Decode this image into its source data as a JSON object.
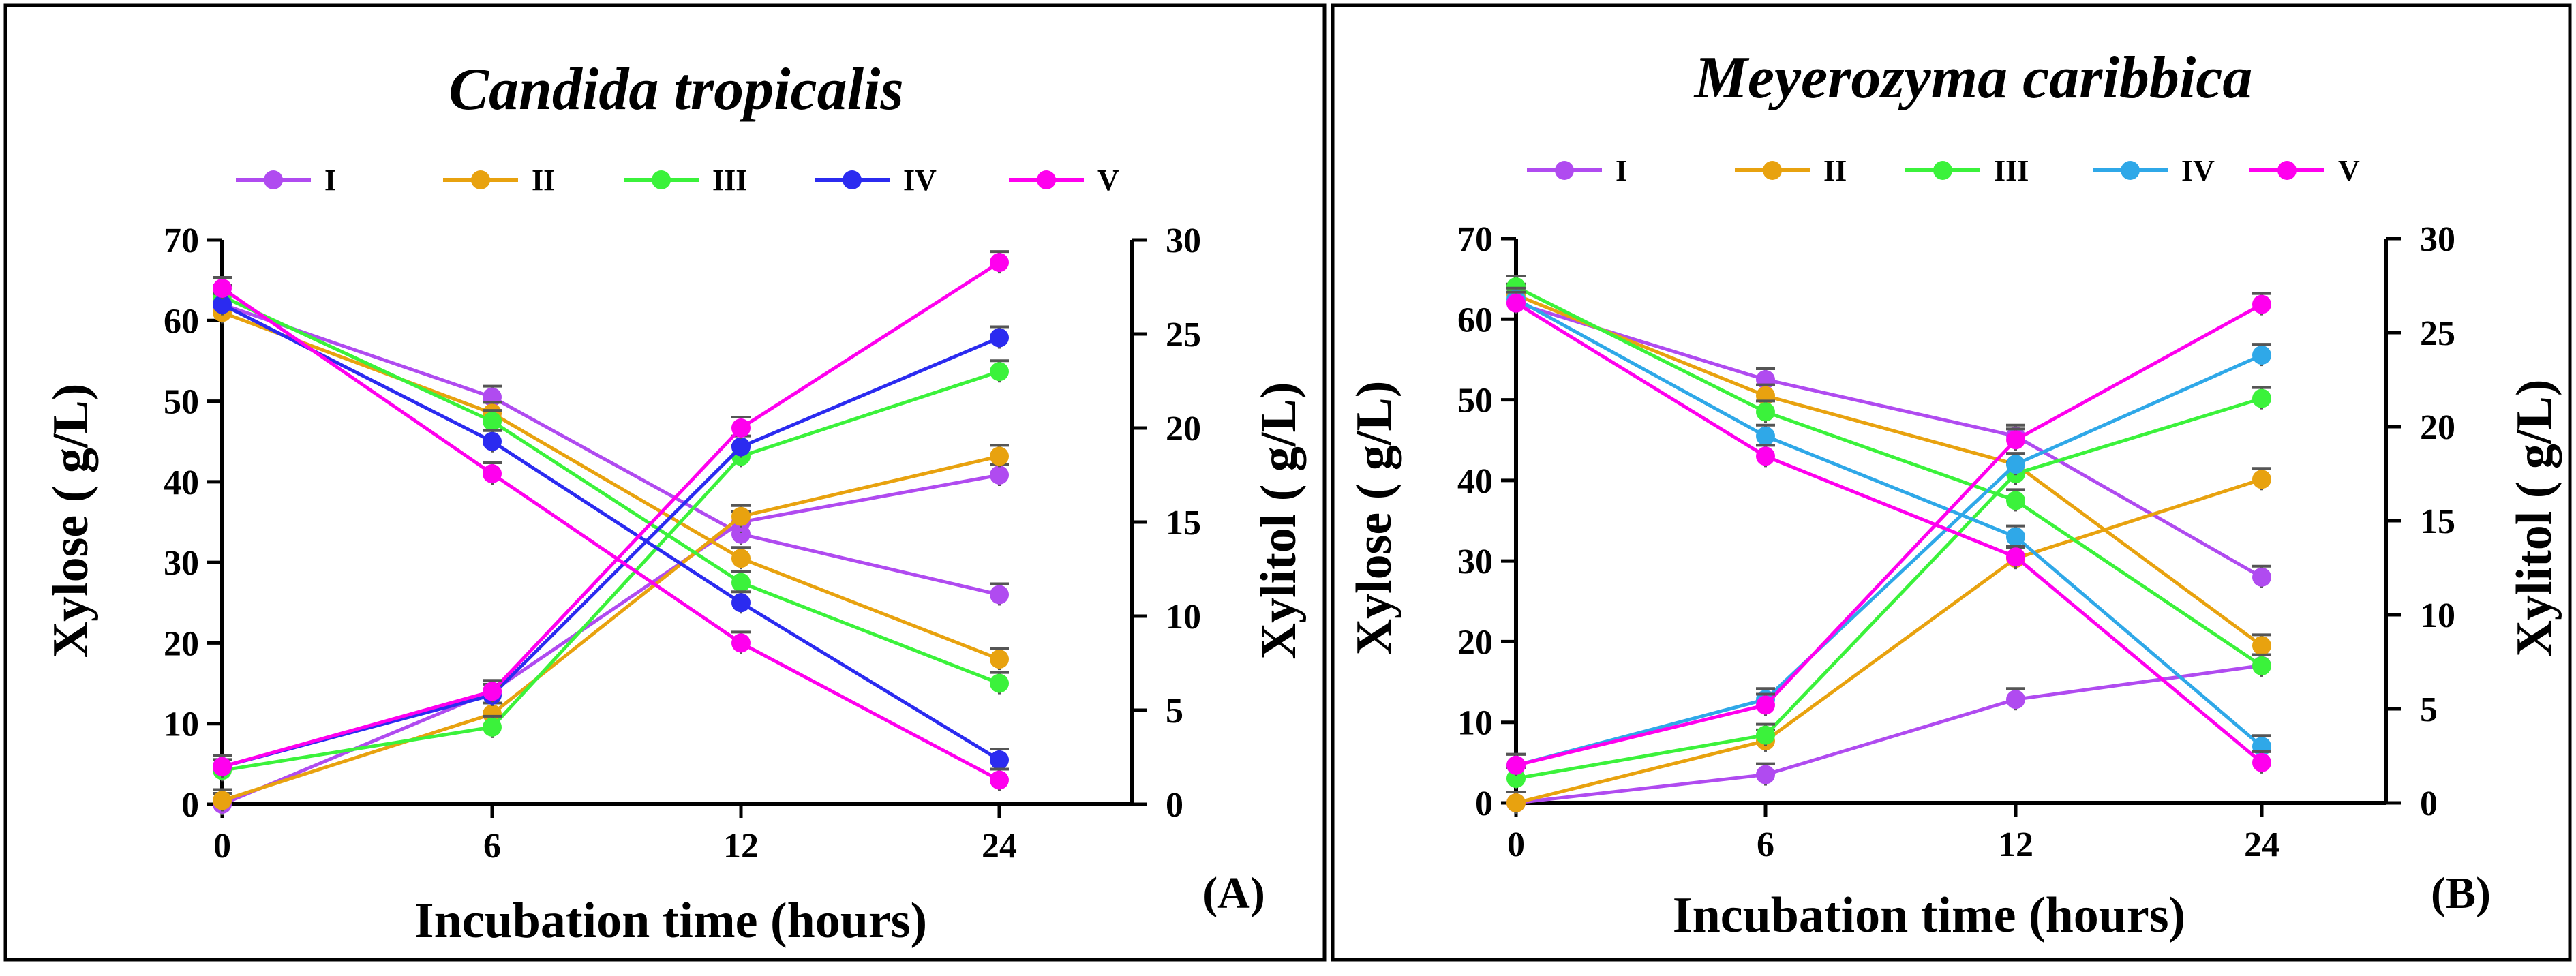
{
  "colors": {
    "I": "#B04BF0",
    "II": "#E8A20F",
    "III": "#3BF23B",
    "IV_A": "#2B2BF0",
    "IV_B": "#2FA8E8",
    "V": "#FF00EE",
    "axis": "#000000",
    "errorbar": "#555555"
  },
  "chart_data": [
    {
      "type": "line",
      "title": "Candida tropicalis",
      "panel_label": "(A)",
      "xlabel": "Incubation time (hours)",
      "ylabel": "Xylose ( g/L)",
      "y2label": "Xylitol ( g/L)",
      "categories": [
        "0",
        "6",
        "12",
        "24"
      ],
      "ylim": [
        0,
        70
      ],
      "y2lim": [
        0,
        30
      ],
      "yticks": [
        "0",
        "10",
        "20",
        "30",
        "40",
        "50",
        "60",
        "70"
      ],
      "y2ticks": [
        "0",
        "5",
        "10",
        "15",
        "20",
        "25",
        "30"
      ],
      "legend": [
        "I",
        "II",
        "III",
        "IV",
        "V"
      ],
      "series": [
        {
          "name": "I",
          "color_key": "I",
          "xylose": [
            62,
            50.5,
            33.5,
            26
          ],
          "xylitol": [
            0,
            6,
            15,
            17.5
          ]
        },
        {
          "name": "II",
          "color_key": "II",
          "xylose": [
            61,
            48.5,
            30.5,
            18
          ],
          "xylitol": [
            0.2,
            4.8,
            15.3,
            18.5
          ]
        },
        {
          "name": "III",
          "color_key": "III",
          "xylose": [
            63,
            47.5,
            27.5,
            15
          ],
          "xylitol": [
            1.8,
            4.1,
            18.5,
            23
          ]
        },
        {
          "name": "IV",
          "color_key": "IV_A",
          "xylose": [
            62,
            45,
            25,
            5.5
          ],
          "xylitol": [
            2,
            5.8,
            19,
            24.8
          ]
        },
        {
          "name": "V",
          "color_key": "V",
          "xylose": [
            64,
            41,
            20,
            3
          ],
          "xylitol": [
            2,
            6,
            20,
            28.8
          ]
        }
      ]
    },
    {
      "type": "line",
      "title": "Meyerozyma caribbica",
      "panel_label": "(B)",
      "xlabel": "Incubation time (hours)",
      "ylabel": "Xylose ( g/L)",
      "y2label": "Xylitol ( g/L)",
      "categories": [
        "0",
        "6",
        "12",
        "24"
      ],
      "ylim": [
        0,
        70
      ],
      "y2lim": [
        0,
        30
      ],
      "yticks": [
        "0",
        "10",
        "20",
        "30",
        "40",
        "50",
        "60",
        "70"
      ],
      "y2ticks": [
        "0",
        "5",
        "10",
        "15",
        "20",
        "25",
        "30"
      ],
      "legend": [
        "I",
        "II",
        "III",
        "IV",
        "V"
      ],
      "series": [
        {
          "name": "I",
          "color_key": "I",
          "xylose": [
            62,
            52.5,
            45.5,
            28
          ],
          "xylitol": [
            0,
            1.5,
            5.5,
            7.3
          ]
        },
        {
          "name": "II",
          "color_key": "II",
          "xylose": [
            63,
            50.5,
            42,
            19.5
          ],
          "xylitol": [
            0,
            3.3,
            13,
            17.2
          ]
        },
        {
          "name": "III",
          "color_key": "III",
          "xylose": [
            64,
            48.5,
            37.5,
            17
          ],
          "xylitol": [
            1.3,
            3.6,
            17.5,
            21.5
          ]
        },
        {
          "name": "IV",
          "color_key": "IV_B",
          "xylose": [
            62.5,
            45.5,
            33,
            7
          ],
          "xylitol": [
            2,
            5.5,
            18,
            23.8
          ]
        },
        {
          "name": "V",
          "color_key": "V",
          "xylose": [
            62,
            43,
            30.5,
            5
          ],
          "xylitol": [
            2,
            5.2,
            19.3,
            26.5
          ]
        }
      ]
    }
  ]
}
